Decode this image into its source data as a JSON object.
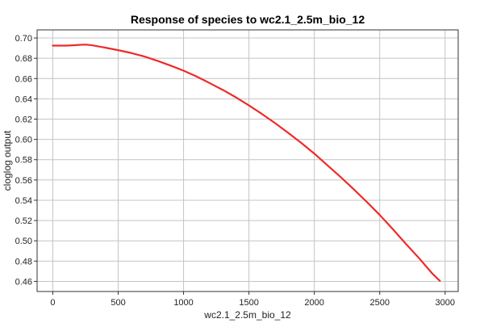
{
  "chart_data": {
    "type": "line",
    "title": "Response of species to wc2.1_2.5m_bio_12",
    "xlabel": "wc2.1_2.5m_bio_12",
    "ylabel": "cloglog output",
    "xlim": [
      -120,
      3100
    ],
    "ylim": [
      0.45,
      0.708
    ],
    "xticks": [
      0,
      500,
      1000,
      1500,
      2000,
      2500,
      3000
    ],
    "yticks": [
      0.46,
      0.48,
      0.5,
      0.52,
      0.54,
      0.56,
      0.58,
      0.6,
      0.62,
      0.64,
      0.66,
      0.68,
      0.7
    ],
    "xtick_labels": [
      "0",
      "500",
      "1000",
      "1500",
      "2000",
      "2500",
      "3000"
    ],
    "ytick_labels": [
      "0.46",
      "0.48",
      "0.50",
      "0.52",
      "0.54",
      "0.56",
      "0.58",
      "0.60",
      "0.62",
      "0.64",
      "0.66",
      "0.68",
      "0.70"
    ],
    "grid": true,
    "series": [
      {
        "color": "#ee2a2a",
        "x": [
          0,
          100,
          150,
          200,
          250,
          300,
          400,
          500,
          600,
          700,
          800,
          900,
          1000,
          1100,
          1200,
          1300,
          1400,
          1500,
          1600,
          1700,
          1800,
          1900,
          2000,
          2100,
          2200,
          2300,
          2400,
          2500,
          2600,
          2700,
          2800,
          2900,
          2960
        ],
        "y": [
          0.6925,
          0.6925,
          0.6928,
          0.6932,
          0.6935,
          0.6928,
          0.6905,
          0.688,
          0.6852,
          0.6818,
          0.6775,
          0.6728,
          0.6678,
          0.662,
          0.6555,
          0.6488,
          0.6415,
          0.6335,
          0.625,
          0.616,
          0.6065,
          0.5965,
          0.586,
          0.5745,
          0.563,
          0.551,
          0.5385,
          0.5255,
          0.5115,
          0.497,
          0.483,
          0.468,
          0.4605
        ]
      }
    ]
  }
}
